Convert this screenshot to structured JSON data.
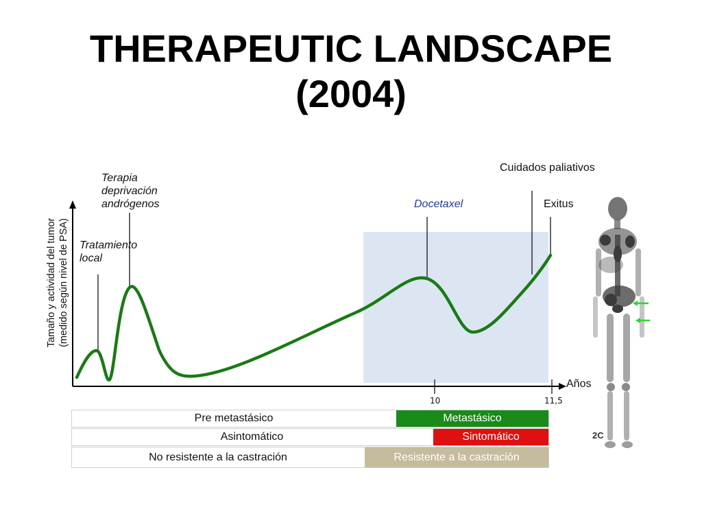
{
  "title": {
    "line1": "THERAPEUTIC LANDSCAPE",
    "line2": "(2004)"
  },
  "y_axis_label": {
    "line1": "Tamaño y actividad del tumor",
    "line2": "(medido según nivel de PSA)"
  },
  "x_axis_label": "Años",
  "x_ticks": [
    "10",
    "11,5"
  ],
  "annotations": {
    "local": {
      "line1": "Tratamiento",
      "line2": "local"
    },
    "adt": {
      "line1": "Terapia",
      "line2": "deprivación",
      "line3": "andrógenos"
    },
    "docetaxel": "Docetaxel",
    "palliative": "Cuidados paliativos",
    "exitus": "Exitus"
  },
  "stages": {
    "row1": {
      "left": "Pre metastásico",
      "right": "Metastásico"
    },
    "row2": {
      "left": "Asintomático",
      "right": "Sintomático"
    },
    "row3": {
      "left": "No resistente a la castración",
      "right": "Resistente a la castración"
    }
  },
  "scan_label": "2C",
  "colors": {
    "curve": "#1a7a14",
    "highlight": "#dce6f2",
    "metastatic": "#1a8a1a",
    "symptomatic": "#e01010",
    "resistant": "#c4bc9c",
    "arrows": "#2fd62f"
  }
}
